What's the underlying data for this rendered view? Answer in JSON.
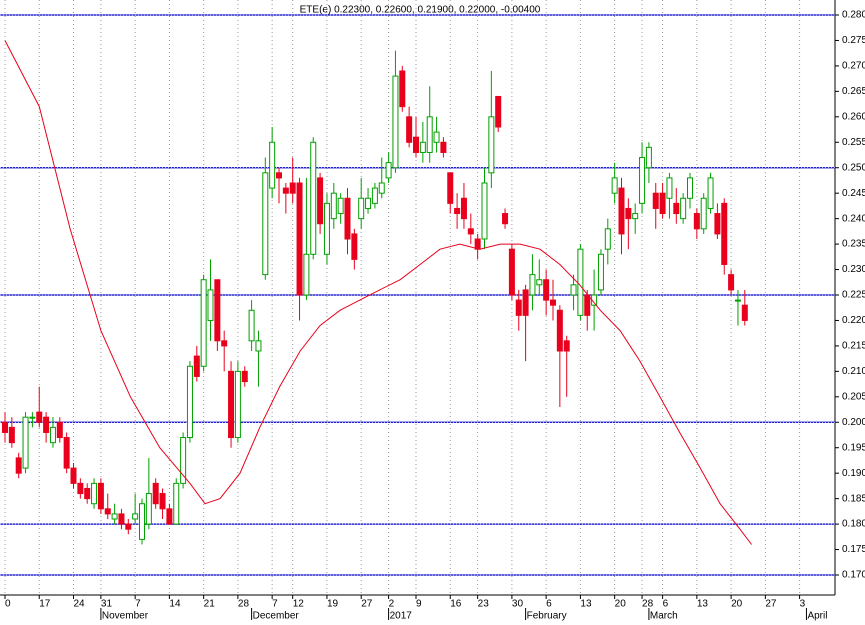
{
  "chart_data": {
    "type": "candlestick",
    "title": "ETE(e) 0.22300, 0.22600, 0.21900, 0.22000, -0.00400",
    "candles": [
      [
        0.2,
        0.202,
        0.196,
        0.198
      ],
      [
        0.199,
        0.201,
        0.195,
        0.196
      ],
      [
        0.193,
        0.194,
        0.189,
        0.19
      ],
      [
        0.191,
        0.202,
        0.19,
        0.201
      ],
      [
        0.201,
        0.202,
        0.199,
        0.201
      ],
      [
        0.202,
        0.207,
        0.199,
        0.2
      ],
      [
        0.201,
        0.202,
        0.196,
        0.198
      ],
      [
        0.196,
        0.201,
        0.195,
        0.199
      ],
      [
        0.2,
        0.201,
        0.196,
        0.197
      ],
      [
        0.197,
        0.198,
        0.19,
        0.191
      ],
      [
        0.191,
        0.192,
        0.187,
        0.188
      ],
      [
        0.188,
        0.189,
        0.185,
        0.186
      ],
      [
        0.187,
        0.188,
        0.184,
        0.185
      ],
      [
        0.184,
        0.189,
        0.183,
        0.188
      ],
      [
        0.188,
        0.189,
        0.182,
        0.183
      ],
      [
        0.183,
        0.186,
        0.181,
        0.182
      ],
      [
        0.181,
        0.184,
        0.18,
        0.182
      ],
      [
        0.182,
        0.183,
        0.179,
        0.18
      ],
      [
        0.18,
        0.181,
        0.178,
        0.179
      ],
      [
        0.181,
        0.186,
        0.18,
        0.182
      ],
      [
        0.177,
        0.185,
        0.176,
        0.184
      ],
      [
        0.18,
        0.193,
        0.179,
        0.186
      ],
      [
        0.188,
        0.189,
        0.183,
        0.184
      ],
      [
        0.186,
        0.187,
        0.181,
        0.183
      ],
      [
        0.183,
        0.184,
        0.18,
        0.18
      ],
      [
        0.18,
        0.189,
        0.18,
        0.188
      ],
      [
        0.188,
        0.198,
        0.187,
        0.197
      ],
      [
        0.197,
        0.212,
        0.196,
        0.211
      ],
      [
        0.213,
        0.215,
        0.208,
        0.209
      ],
      [
        0.211,
        0.229,
        0.21,
        0.228
      ],
      [
        0.22,
        0.232,
        0.216,
        0.226
      ],
      [
        0.228,
        0.228,
        0.214,
        0.216
      ],
      [
        0.216,
        0.218,
        0.21,
        0.215
      ],
      [
        0.21,
        0.212,
        0.195,
        0.197
      ],
      [
        0.197,
        0.212,
        0.196,
        0.21
      ],
      [
        0.21,
        0.211,
        0.207,
        0.208
      ],
      [
        0.216,
        0.224,
        0.214,
        0.222
      ],
      [
        0.214,
        0.218,
        0.207,
        0.216
      ],
      [
        0.229,
        0.252,
        0.228,
        0.249
      ],
      [
        0.246,
        0.258,
        0.244,
        0.255
      ],
      [
        0.249,
        0.25,
        0.243,
        0.248
      ],
      [
        0.246,
        0.247,
        0.241,
        0.245
      ],
      [
        0.247,
        0.252,
        0.243,
        0.245
      ],
      [
        0.247,
        0.248,
        0.22,
        0.225
      ],
      [
        0.225,
        0.248,
        0.224,
        0.233
      ],
      [
        0.233,
        0.256,
        0.232,
        0.255
      ],
      [
        0.248,
        0.249,
        0.237,
        0.239
      ],
      [
        0.233,
        0.245,
        0.231,
        0.243
      ],
      [
        0.24,
        0.247,
        0.238,
        0.245
      ],
      [
        0.241,
        0.245,
        0.239,
        0.244
      ],
      [
        0.244,
        0.246,
        0.233,
        0.236
      ],
      [
        0.237,
        0.238,
        0.23,
        0.232
      ],
      [
        0.24,
        0.248,
        0.238,
        0.244
      ],
      [
        0.242,
        0.246,
        0.241,
        0.244
      ],
      [
        0.243,
        0.247,
        0.242,
        0.246
      ],
      [
        0.245,
        0.252,
        0.244,
        0.247
      ],
      [
        0.248,
        0.253,
        0.247,
        0.251
      ],
      [
        0.25,
        0.273,
        0.249,
        0.268
      ],
      [
        0.269,
        0.27,
        0.261,
        0.262
      ],
      [
        0.26,
        0.262,
        0.254,
        0.255
      ],
      [
        0.256,
        0.26,
        0.252,
        0.253
      ],
      [
        0.253,
        0.259,
        0.251,
        0.255
      ],
      [
        0.253,
        0.266,
        0.251,
        0.26
      ],
      [
        0.255,
        0.26,
        0.253,
        0.257
      ],
      [
        0.255,
        0.256,
        0.252,
        0.253
      ],
      [
        0.249,
        0.249,
        0.241,
        0.243
      ],
      [
        0.242,
        0.245,
        0.238,
        0.241
      ],
      [
        0.244,
        0.247,
        0.238,
        0.24
      ],
      [
        0.238,
        0.241,
        0.235,
        0.237
      ],
      [
        0.236,
        0.237,
        0.232,
        0.234
      ],
      [
        0.236,
        0.25,
        0.234,
        0.247
      ],
      [
        0.249,
        0.269,
        0.246,
        0.26
      ],
      [
        0.264,
        0.264,
        0.257,
        0.258
      ],
      [
        0.241,
        0.242,
        0.238,
        0.239
      ],
      [
        0.234,
        0.235,
        0.224,
        0.225
      ],
      [
        0.224,
        0.226,
        0.218,
        0.221
      ],
      [
        0.226,
        0.227,
        0.212,
        0.221
      ],
      [
        0.225,
        0.233,
        0.222,
        0.229
      ],
      [
        0.227,
        0.232,
        0.225,
        0.228
      ],
      [
        0.228,
        0.23,
        0.221,
        0.224
      ],
      [
        0.224,
        0.228,
        0.22,
        0.223
      ],
      [
        0.222,
        0.223,
        0.203,
        0.214
      ],
      [
        0.216,
        0.217,
        0.205,
        0.214
      ],
      [
        0.225,
        0.229,
        0.222,
        0.227
      ],
      [
        0.221,
        0.235,
        0.22,
        0.234
      ],
      [
        0.225,
        0.226,
        0.218,
        0.221
      ],
      [
        0.223,
        0.23,
        0.218,
        0.225
      ],
      [
        0.226,
        0.234,
        0.225,
        0.233
      ],
      [
        0.234,
        0.24,
        0.231,
        0.238
      ],
      [
        0.245,
        0.251,
        0.243,
        0.248
      ],
      [
        0.246,
        0.248,
        0.233,
        0.237
      ],
      [
        0.242,
        0.244,
        0.234,
        0.24
      ],
      [
        0.24,
        0.243,
        0.237,
        0.241
      ],
      [
        0.243,
        0.255,
        0.241,
        0.252
      ],
      [
        0.25,
        0.255,
        0.247,
        0.254
      ],
      [
        0.245,
        0.247,
        0.238,
        0.242
      ],
      [
        0.245,
        0.247,
        0.24,
        0.241
      ],
      [
        0.244,
        0.249,
        0.24,
        0.248
      ],
      [
        0.243,
        0.246,
        0.239,
        0.241
      ],
      [
        0.24,
        0.245,
        0.239,
        0.244
      ],
      [
        0.244,
        0.249,
        0.242,
        0.248
      ],
      [
        0.241,
        0.242,
        0.236,
        0.238
      ],
      [
        0.238,
        0.245,
        0.237,
        0.244
      ],
      [
        0.242,
        0.249,
        0.241,
        0.248
      ],
      [
        0.241,
        0.243,
        0.236,
        0.237
      ],
      [
        0.243,
        0.244,
        0.229,
        0.231
      ],
      [
        0.229,
        0.23,
        0.225,
        0.226
      ],
      [
        0.224,
        0.226,
        0.219,
        0.224
      ],
      [
        0.223,
        0.226,
        0.219,
        0.22
      ]
    ],
    "up_color": "#00a000",
    "down_color": "#e8001c",
    "ma": {
      "color": "#e8001c",
      "x": [
        0,
        5,
        9.5,
        14,
        18.3,
        22.6,
        27,
        29.2,
        31.4,
        34.3,
        37.2,
        40.1,
        43.1,
        46,
        48.9,
        51.8,
        54.7,
        57.7,
        60.6,
        63.5,
        66.4,
        69.3,
        72.3,
        75.2,
        78.1,
        81,
        83.9,
        86.9,
        89.8,
        92.7,
        95.6,
        98.5,
        101.5,
        104.4,
        107.3,
        109
      ],
      "values": [
        0.275,
        0.262,
        0.238,
        0.218,
        0.205,
        0.195,
        0.188,
        0.184,
        0.185,
        0.19,
        0.199,
        0.207,
        0.214,
        0.219,
        0.222,
        0.224,
        0.226,
        0.228,
        0.231,
        0.234,
        0.235,
        0.234,
        0.235,
        0.235,
        0.234,
        0.231,
        0.227,
        0.222,
        0.218,
        0.212,
        0.205,
        0.198,
        0.191,
        0.184,
        0.179,
        0.176
      ]
    },
    "hlines": [
      0.28,
      0.25,
      0.225,
      0.2,
      0.18,
      0.17
    ],
    "hline_color": "#0000c8",
    "xlim": [
      0,
      120
    ],
    "ylim": [
      0.17,
      0.28
    ],
    "yticks": [
      {
        "value": 0.17,
        "label": "0.170"
      },
      {
        "value": 0.175,
        "label": "0.175"
      },
      {
        "value": 0.18,
        "label": "0.180"
      },
      {
        "value": 0.185,
        "label": "0.185"
      },
      {
        "value": 0.19,
        "label": "0.190"
      },
      {
        "value": 0.195,
        "label": "0.195"
      },
      {
        "value": 0.2,
        "label": "0.200"
      },
      {
        "value": 0.205,
        "label": "0.205"
      },
      {
        "value": 0.21,
        "label": "0.210"
      },
      {
        "value": 0.215,
        "label": "0.215"
      },
      {
        "value": 0.22,
        "label": "0.220"
      },
      {
        "value": 0.225,
        "label": "0.225"
      },
      {
        "value": 0.23,
        "label": "0.230"
      },
      {
        "value": 0.235,
        "label": "0.235"
      },
      {
        "value": 0.24,
        "label": "0.240"
      },
      {
        "value": 0.245,
        "label": "0.245"
      },
      {
        "value": 0.25,
        "label": "0.250"
      },
      {
        "value": 0.255,
        "label": "0.255"
      },
      {
        "value": 0.26,
        "label": "0.260"
      },
      {
        "value": 0.265,
        "label": "0.265"
      },
      {
        "value": 0.27,
        "label": "0.270"
      },
      {
        "value": 0.275,
        "label": "0.275"
      },
      {
        "value": 0.28,
        "label": "0.280"
      }
    ],
    "xticks": [
      {
        "value": 0,
        "label": "0"
      },
      {
        "value": 5,
        "label": "17"
      },
      {
        "value": 10,
        "label": "24"
      },
      {
        "value": 14,
        "label": "31"
      },
      {
        "value": 19,
        "label": "7"
      },
      {
        "value": 24,
        "label": "14"
      },
      {
        "value": 29,
        "label": "21"
      },
      {
        "value": 34,
        "label": "28"
      },
      {
        "value": 39,
        "label": "7"
      },
      {
        "value": 42,
        "label": "12"
      },
      {
        "value": 47,
        "label": "19"
      },
      {
        "value": 52,
        "label": "27"
      },
      {
        "value": 56,
        "label": "2"
      },
      {
        "value": 60,
        "label": "9"
      },
      {
        "value": 65,
        "label": "16"
      },
      {
        "value": 69,
        "label": "23"
      },
      {
        "value": 74,
        "label": "30"
      },
      {
        "value": 79,
        "label": "6"
      },
      {
        "value": 84,
        "label": "13"
      },
      {
        "value": 89,
        "label": "20"
      },
      {
        "value": 93,
        "label": "28"
      },
      {
        "value": 96,
        "label": "6"
      },
      {
        "value": 101,
        "label": "13"
      },
      {
        "value": 106,
        "label": "20"
      },
      {
        "value": 111,
        "label": "27"
      },
      {
        "value": 116,
        "label": "3"
      }
    ],
    "month_ticks": [
      {
        "value": 14,
        "label": "November"
      },
      {
        "value": 36,
        "label": "December"
      },
      {
        "value": 56,
        "label": "2017"
      },
      {
        "value": 76,
        "label": "February"
      },
      {
        "value": 94,
        "label": "March"
      },
      {
        "value": 117,
        "label": "April"
      }
    ],
    "grid": true
  }
}
